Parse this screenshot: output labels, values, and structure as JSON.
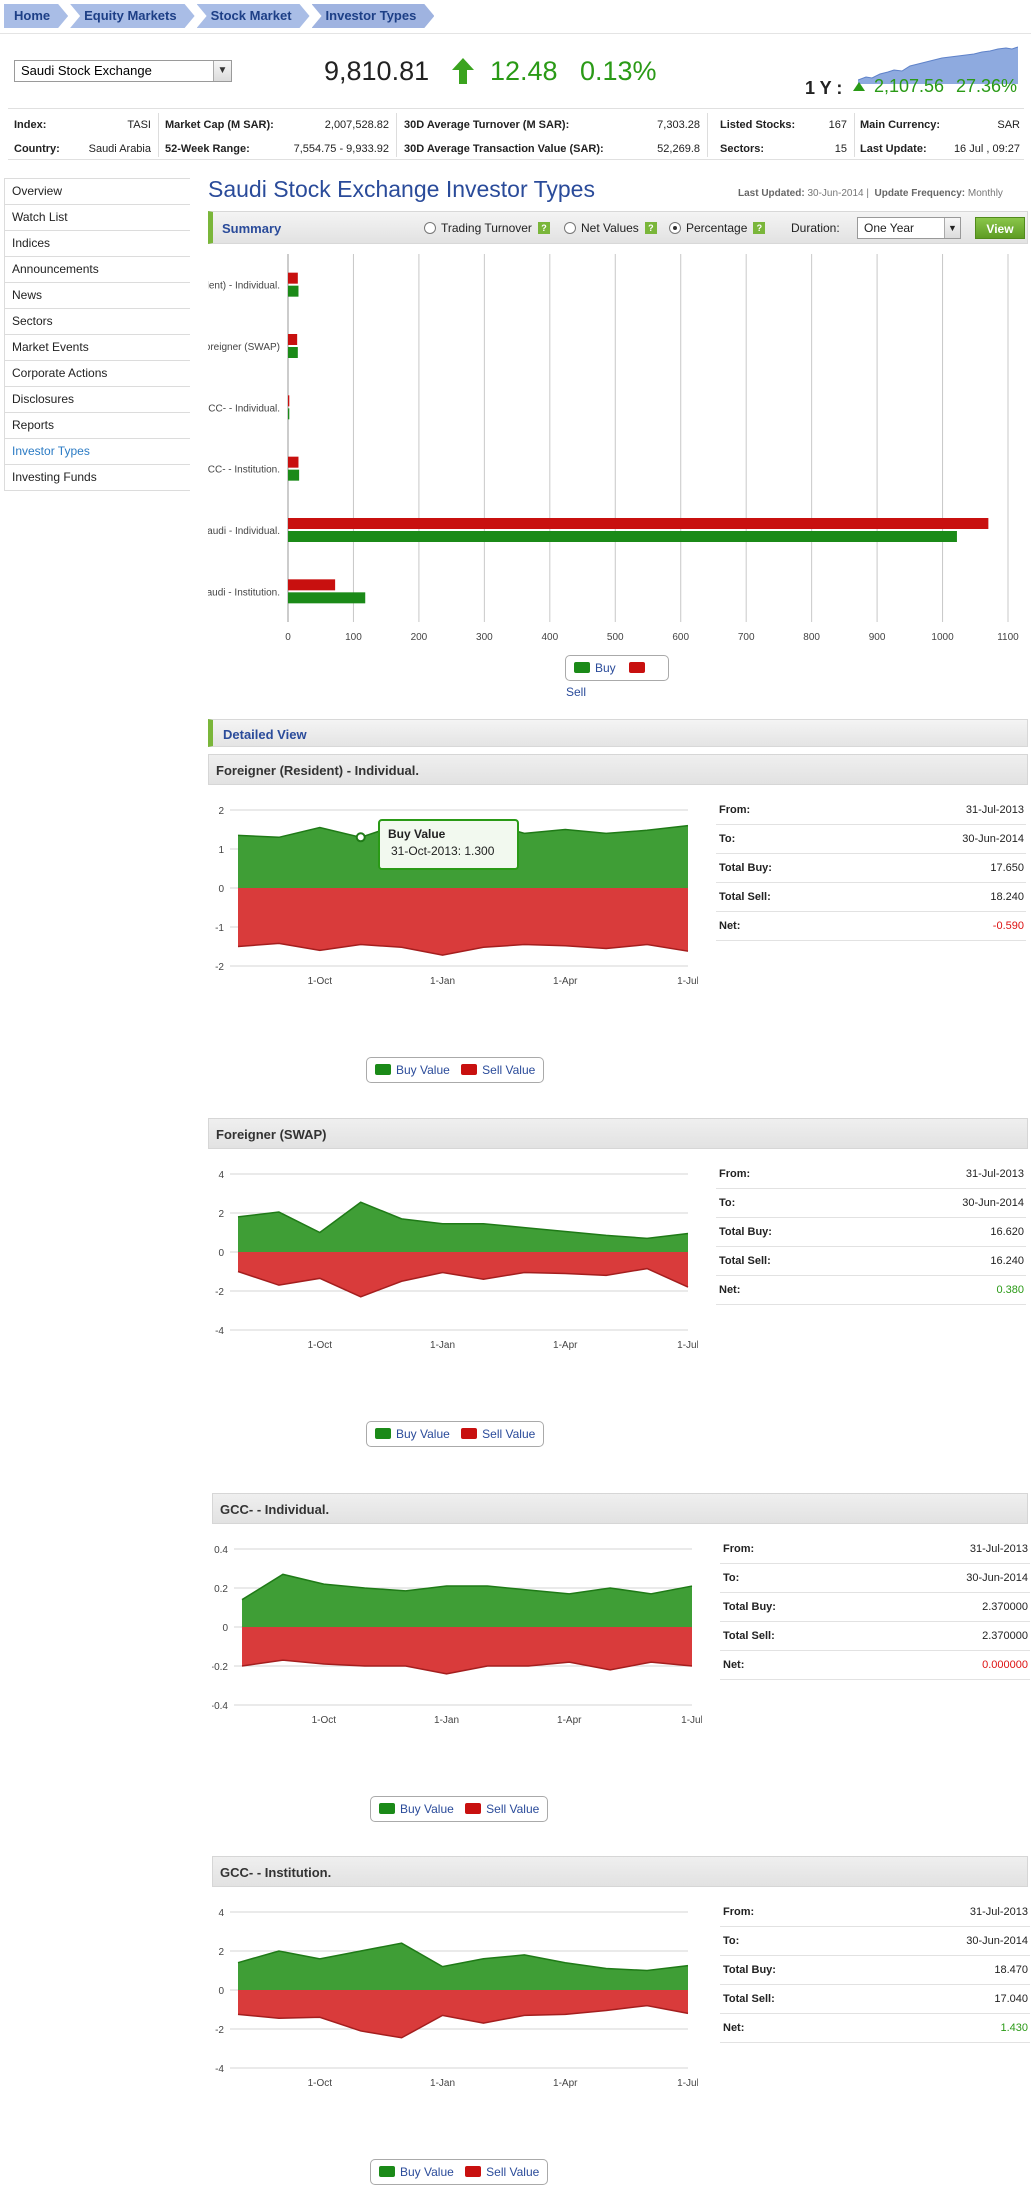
{
  "breadcrumb": [
    "Home",
    "Equity Markets",
    "Stock Market",
    "Investor Types"
  ],
  "market": {
    "exchange": "Saudi Stock Exchange",
    "value": "9,810.81",
    "change": "12.48",
    "change_pct": "0.13%",
    "y1_label": "1 Y :",
    "y1_value": "2,107.56",
    "y1_pct": "27.36%"
  },
  "stats": {
    "index_label": "Index:",
    "index": "TASI",
    "country_label": "Country:",
    "country": "Saudi Arabia",
    "mcap_label": "Market Cap (M SAR):",
    "mcap": "2,007,528.82",
    "range_label": "52-Week Range:",
    "range": "7,554.75 - 9,933.92",
    "turnover_label": "30D Average Turnover (M SAR):",
    "turnover": "7,303.28",
    "txn_label": "30D Average Transaction Value (SAR):",
    "txn": "52,269.8",
    "listed_label": "Listed Stocks:",
    "listed": "167",
    "sectors_label": "Sectors:",
    "sectors": "15",
    "currency_label": "Main Currency:",
    "currency": "SAR",
    "update_label": "Last Update:",
    "update": "16 Jul , 09:27"
  },
  "sidebar": [
    "Overview",
    "Watch List",
    "Indices",
    "Announcements",
    "News",
    "Sectors",
    "Market Events",
    "Corporate Actions",
    "Disclosures",
    "Reports",
    "Investor Types",
    "Investing Funds"
  ],
  "page": {
    "title": "Saudi Stock Exchange Investor Types",
    "last_updated_label": "Last Updated:",
    "last_updated": "30-Jun-2014",
    "freq_label": "Update Frequency:",
    "freq": "Monthly"
  },
  "summary": {
    "title": "Summary",
    "options": [
      "Trading Turnover",
      "Net Values",
      "Percentage"
    ],
    "selected": "Percentage",
    "help": "?",
    "duration_label": "Duration:",
    "duration": "One Year",
    "view_label": "View"
  },
  "chart_data": [
    {
      "type": "bar",
      "orientation": "horizontal",
      "categories": [
        "Foreigner (Resident) - Individual.",
        "Foreigner (SWAP)",
        "GCC- - Individual.",
        "GCC- - Institution.",
        "Saudi - Individual.",
        "Saudi - Institution."
      ],
      "series": [
        {
          "name": "Sell",
          "color": "#c8100f",
          "values": [
            15,
            14,
            2,
            16,
            1070,
            72
          ]
        },
        {
          "name": "Buy",
          "color": "#1b8a18",
          "values": [
            16,
            15,
            2,
            17,
            1022,
            118
          ]
        }
      ],
      "xlim": [
        0,
        1100
      ],
      "xticks": [
        "0",
        "100",
        "200",
        "300",
        "400",
        "500",
        "600",
        "700",
        "800",
        "900",
        "1000",
        "1100"
      ],
      "legend": "bottom-center"
    },
    {
      "type": "area",
      "title": "Foreigner (Resident) - Individual.",
      "x": [
        "Jul-2013",
        "Aug-2013",
        "Sep-2013",
        "Oct-2013",
        "Nov-2013",
        "Dec-2013",
        "Jan-2014",
        "Feb-2014",
        "Mar-2014",
        "Apr-2014",
        "May-2014",
        "Jun-2014"
      ],
      "xticks": [
        "1-Oct",
        "1-Jan",
        "1-Apr",
        "1-Jul"
      ],
      "yticks": [
        "2",
        "1",
        "0",
        "-1",
        "-2"
      ],
      "ylim": [
        -2,
        2
      ],
      "series": [
        {
          "name": "Buy Value",
          "values": [
            1.35,
            1.3,
            1.55,
            1.3,
            1.65,
            1.75,
            1.7,
            1.4,
            1.5,
            1.4,
            1.48,
            1.6
          ]
        },
        {
          "name": "Sell Value",
          "values": [
            -1.5,
            -1.42,
            -1.6,
            -1.45,
            -1.52,
            -1.72,
            -1.52,
            -1.45,
            -1.48,
            -1.55,
            -1.45,
            -1.62
          ]
        }
      ]
    },
    {
      "type": "area",
      "title": "Foreigner (SWAP)",
      "x": [
        "Jul-2013",
        "Aug-2013",
        "Sep-2013",
        "Oct-2013",
        "Nov-2013",
        "Dec-2013",
        "Jan-2014",
        "Feb-2014",
        "Mar-2014",
        "Apr-2014",
        "May-2014",
        "Jun-2014"
      ],
      "xticks": [
        "1-Oct",
        "1-Jan",
        "1-Apr",
        "1-Jul"
      ],
      "yticks": [
        "4",
        "2",
        "0",
        "-2",
        "-4"
      ],
      "ylim": [
        -4,
        4
      ],
      "series": [
        {
          "name": "Buy Value",
          "values": [
            1.8,
            2.05,
            1.0,
            2.55,
            1.7,
            1.45,
            1.45,
            1.25,
            1.05,
            0.85,
            0.7,
            0.95
          ]
        },
        {
          "name": "Sell Value",
          "values": [
            -1.0,
            -1.7,
            -1.35,
            -2.3,
            -1.5,
            -1.05,
            -1.4,
            -1.05,
            -1.1,
            -1.2,
            -0.85,
            -1.8
          ]
        }
      ]
    },
    {
      "type": "area",
      "title": "GCC- - Individual.",
      "x": [
        "Jul-2013",
        "Aug-2013",
        "Sep-2013",
        "Oct-2013",
        "Nov-2013",
        "Dec-2013",
        "Jan-2014",
        "Feb-2014",
        "Mar-2014",
        "Apr-2014",
        "May-2014",
        "Jun-2014"
      ],
      "xticks": [
        "1-Oct",
        "1-Jan",
        "1-Apr",
        "1-Jul"
      ],
      "yticks": [
        "0.4",
        "0.2",
        "0",
        "-0.2",
        "-0.4"
      ],
      "ylim": [
        -0.4,
        0.4
      ],
      "series": [
        {
          "name": "Buy Value",
          "values": [
            0.14,
            0.27,
            0.22,
            0.2,
            0.185,
            0.21,
            0.21,
            0.19,
            0.17,
            0.2,
            0.17,
            0.21
          ]
        },
        {
          "name": "Sell Value",
          "values": [
            -0.2,
            -0.17,
            -0.19,
            -0.2,
            -0.2,
            -0.24,
            -0.2,
            -0.2,
            -0.18,
            -0.22,
            -0.18,
            -0.2
          ]
        }
      ]
    },
    {
      "type": "area",
      "title": "GCC- - Institution.",
      "x": [
        "Jul-2013",
        "Aug-2013",
        "Sep-2013",
        "Oct-2013",
        "Nov-2013",
        "Dec-2013",
        "Jan-2014",
        "Feb-2014",
        "Mar-2014",
        "Apr-2014",
        "May-2014",
        "Jun-2014"
      ],
      "xticks": [
        "1-Oct",
        "1-Jan",
        "1-Apr",
        "1-Jul"
      ],
      "yticks": [
        "4",
        "2",
        "0",
        "-2",
        "-4"
      ],
      "ylim": [
        -4,
        4
      ],
      "series": [
        {
          "name": "Buy Value",
          "values": [
            1.4,
            2.0,
            1.6,
            2.0,
            2.4,
            1.2,
            1.6,
            1.8,
            1.4,
            1.1,
            1.0,
            1.25
          ]
        },
        {
          "name": "Sell Value",
          "values": [
            -1.25,
            -1.45,
            -1.4,
            -2.1,
            -2.45,
            -1.3,
            -1.7,
            -1.3,
            -1.25,
            -1.05,
            -0.8,
            -1.2
          ]
        }
      ]
    }
  ],
  "legend_main": [
    "Buy",
    "Sell"
  ],
  "legend_area": [
    "Buy Value",
    "Sell Value"
  ],
  "detail": {
    "title": "Detailed View",
    "labels": {
      "from": "From:",
      "to": "To:",
      "buy": "Total Buy:",
      "sell": "Total Sell:",
      "net": "Net:"
    },
    "sections": [
      {
        "title": "Foreigner (Resident) - Individual.",
        "from": "31-Jul-2013",
        "to": "30-Jun-2014",
        "buy": "17.650",
        "sell": "18.240",
        "net": "-0.590"
      },
      {
        "title": "Foreigner (SWAP)",
        "from": "31-Jul-2013",
        "to": "30-Jun-2014",
        "buy": "16.620",
        "sell": "16.240",
        "net": "0.380"
      },
      {
        "title": "GCC- - Individual.",
        "from": "31-Jul-2013",
        "to": "30-Jun-2014",
        "buy": "2.370000",
        "sell": "2.370000",
        "net": "0.000000"
      },
      {
        "title": "GCC- - Institution.",
        "from": "31-Jul-2013",
        "to": "30-Jun-2014",
        "buy": "18.470",
        "sell": "17.040",
        "net": "1.430"
      }
    ]
  },
  "tooltip": {
    "title": "Buy Value",
    "text": "31-Oct-2013: 1.300"
  }
}
